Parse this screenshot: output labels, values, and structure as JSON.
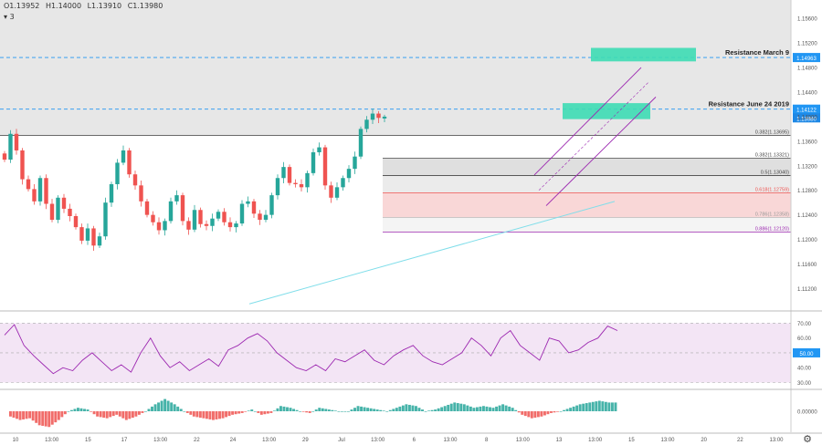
{
  "header": {
    "ohlc": [
      "O1.13952",
      "H1.14000",
      "L1.13910",
      "C1.13980"
    ],
    "sub": "3"
  },
  "colors": {
    "up": "#26a69a",
    "down": "#ef5350",
    "rsi_line": "#9c27b0",
    "rsi_band": "#f3e5f5",
    "price_tag": "#2196f3",
    "resistance_box": "#3ddcb4",
    "trendline": "#80deea"
  },
  "chart_data": [
    {
      "type": "candlestick",
      "price_axis": [
        "1.15600",
        "1.15200",
        "1.14800",
        "1.14400",
        "1.14000",
        "1.13600",
        "1.13200",
        "1.12800",
        "1.12400",
        "1.12000",
        "1.11600",
        "1.11200"
      ],
      "ylim": [
        1.1085,
        1.159
      ],
      "time_axis": [
        "10",
        "13:00",
        "15",
        "17",
        "13:00",
        "22",
        "24",
        "13:00",
        "29",
        "Jul",
        "13:00",
        "6",
        "13:00",
        "8",
        "13:00",
        "13",
        "13:00",
        "15",
        "13:00",
        "20",
        "22",
        "13:00"
      ],
      "resistance_levels": [
        {
          "label": "Resistance March 9",
          "value": 1.14963,
          "tag": "1.14963"
        },
        {
          "label": "Resistance June 24 2019",
          "value": 1.14122,
          "tag": "1.14122"
        }
      ],
      "current_price_tag": "1.13980",
      "current_price": 1.1398,
      "fib_left": {
        "label": "0.382(1.13695)",
        "value": 1.13695
      },
      "fib_levels": [
        {
          "label": "0.382(1.13321)",
          "value": 1.13321
        },
        {
          "label": "0.5(1.13040)",
          "value": 1.1304
        },
        {
          "label": "0.618(1.12759)",
          "value": 1.12759
        },
        {
          "label": "0.786(1.12358)",
          "value": 1.12358
        },
        {
          "label": "0.886(1.12120)",
          "value": 1.1212
        }
      ],
      "anchors": [
        1.133,
        1.1372,
        1.1345,
        1.1298,
        1.1282,
        1.1262,
        1.13,
        1.1258,
        1.1232,
        1.1268,
        1.125,
        1.1238,
        1.122,
        1.1198,
        1.1218,
        1.119,
        1.1205,
        1.126,
        1.129,
        1.1325,
        1.1345,
        1.1306,
        1.1288,
        1.1262,
        1.124,
        1.1228,
        1.1215,
        1.123,
        1.1262,
        1.1272,
        1.123,
        1.1216,
        1.1248,
        1.1225,
        1.1222,
        1.1234,
        1.1245,
        1.1228,
        1.122,
        1.1226,
        1.1258,
        1.1262,
        1.1242,
        1.1232,
        1.124,
        1.1272,
        1.13,
        1.1318,
        1.1292,
        1.129,
        1.1285,
        1.1308,
        1.1342,
        1.135,
        1.1288,
        1.1268,
        1.1285,
        1.13,
        1.1315,
        1.1335,
        1.138,
        1.1395,
        1.1405,
        1.1398
      ]
    },
    {
      "type": "line",
      "name": "RSI",
      "ticks": [
        "70.00",
        "60.00",
        "50.00",
        "40.00",
        "30.00"
      ],
      "level_tag": "50.00",
      "ylim": [
        26,
        77
      ],
      "band": [
        30,
        70
      ],
      "anchors": [
        62,
        69,
        55,
        48,
        42,
        36,
        40,
        38,
        45,
        50,
        44,
        38,
        42,
        37,
        50,
        60,
        48,
        40,
        44,
        38,
        42,
        46,
        41,
        52,
        55,
        60,
        63,
        58,
        50,
        45,
        40,
        38,
        42,
        38,
        46,
        44,
        48,
        52,
        45,
        42,
        48,
        52,
        55,
        48,
        44,
        42,
        46,
        50,
        60,
        55,
        48,
        60,
        65,
        55,
        50,
        45,
        60,
        58,
        50,
        52,
        57,
        60,
        68,
        65
      ]
    },
    {
      "type": "bar",
      "name": "MACD histogram",
      "ticks": [
        "0.00000"
      ],
      "ylim": [
        -0.0012,
        0.0012
      ],
      "anchors": [
        -0.0003,
        -0.0005,
        -0.0004,
        -0.0008,
        -0.0009,
        -0.0005,
        0.0,
        0.0002,
        0.0001,
        -0.0003,
        -0.0004,
        -0.0002,
        -0.0005,
        -0.0003,
        0.0,
        0.0004,
        0.0007,
        0.0004,
        0.0,
        -0.0003,
        -0.0004,
        -0.0005,
        -0.0004,
        -0.0002,
        -0.0001,
        0.0001,
        -0.0002,
        -0.0001,
        0.0003,
        0.0002,
        0.0,
        -0.0001,
        0.0002,
        0.0001,
        0.0,
        0.0,
        0.0003,
        0.0002,
        0.0001,
        0.0,
        0.0002,
        0.0004,
        0.0003,
        0.0,
        0.0001,
        0.0003,
        0.0005,
        0.0004,
        0.0002,
        0.0003,
        0.0002,
        0.0004,
        0.0002,
        -0.0002,
        -0.0004,
        -0.0003,
        -0.0001,
        0.0,
        0.0002,
        0.0004,
        0.0005,
        0.0006,
        0.0005
      ]
    }
  ]
}
